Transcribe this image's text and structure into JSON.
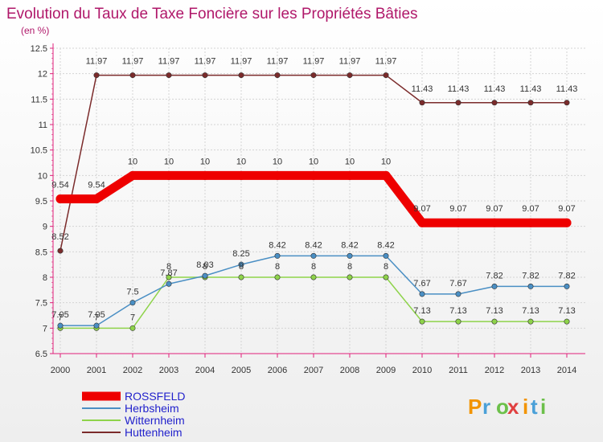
{
  "chart_data": {
    "type": "line",
    "title": "Evolution du Taux de Taxe Foncière sur les Propriétés Bâties",
    "subtitle": "(en %)",
    "xlabel": "",
    "ylabel": "",
    "categories": [
      "2000",
      "2001",
      "2002",
      "2003",
      "2004",
      "2005",
      "2006",
      "2007",
      "2008",
      "2009",
      "2010",
      "2011",
      "2012",
      "2013",
      "2014"
    ],
    "ylim": [
      6.5,
      12.5
    ],
    "yticks": [
      "6.5",
      "7",
      "7.5",
      "8",
      "8.5",
      "9",
      "9.5",
      "10",
      "10.5",
      "11",
      "11.5",
      "12",
      "12.5"
    ],
    "grid": true,
    "legend_position": "bottom-left",
    "series": [
      {
        "name": "ROSSFELD",
        "color": "#ee0000",
        "values": [
          9.54,
          9.54,
          10,
          10,
          10,
          10,
          10,
          10,
          10,
          10,
          9.07,
          9.07,
          9.07,
          9.07,
          9.07
        ],
        "labels": [
          "9.54",
          "9.54",
          "10",
          "10",
          "10",
          "10",
          "10",
          "10",
          "10",
          "10",
          "9.07",
          "9.07",
          "9.07",
          "9.07",
          "9.07"
        ]
      },
      {
        "name": "Herbsheim",
        "color": "#4a8fc4",
        "values": [
          7.05,
          7.05,
          7.5,
          7.87,
          8.03,
          8.25,
          8.42,
          8.42,
          8.42,
          8.42,
          7.67,
          7.67,
          7.82,
          7.82,
          7.82
        ],
        "labels": [
          "7.05",
          "7.05",
          "7.5",
          "7.87",
          "8.03",
          "8.25",
          "8.42",
          "8.42",
          "8.42",
          "8.42",
          "7.67",
          "7.67",
          "7.82",
          "7.82",
          "7.82"
        ]
      },
      {
        "name": "Witternheim",
        "color": "#8ed34a",
        "values": [
          7,
          7,
          7,
          8,
          8,
          8,
          8,
          8,
          8,
          8,
          7.13,
          7.13,
          7.13,
          7.13,
          7.13
        ],
        "labels": [
          "7",
          "7",
          "7",
          "8",
          "8",
          "8",
          "8",
          "8",
          "8",
          "8",
          "7.13",
          "7.13",
          "7.13",
          "7.13",
          "7.13"
        ]
      },
      {
        "name": "Huttenheim",
        "color": "#7b2b2b",
        "values": [
          8.52,
          11.97,
          11.97,
          11.97,
          11.97,
          11.97,
          11.97,
          11.97,
          11.97,
          11.97,
          11.43,
          11.43,
          11.43,
          11.43,
          11.43
        ],
        "labels": [
          "8.52",
          "11.97",
          "11.97",
          "11.97",
          "11.97",
          "11.97",
          "11.97",
          "11.97",
          "11.97",
          "11.97",
          "11.43",
          "11.43",
          "11.43",
          "11.43",
          "11.43"
        ]
      }
    ]
  },
  "logo": {
    "letters": [
      "P",
      "r",
      "o",
      "x",
      "i",
      "t",
      "i"
    ],
    "colors": [
      "#f29400",
      "#4aa0d8",
      "#6cc04a",
      "#e04040",
      "#f29400",
      "#4aa0d8",
      "#6cc04a"
    ]
  }
}
